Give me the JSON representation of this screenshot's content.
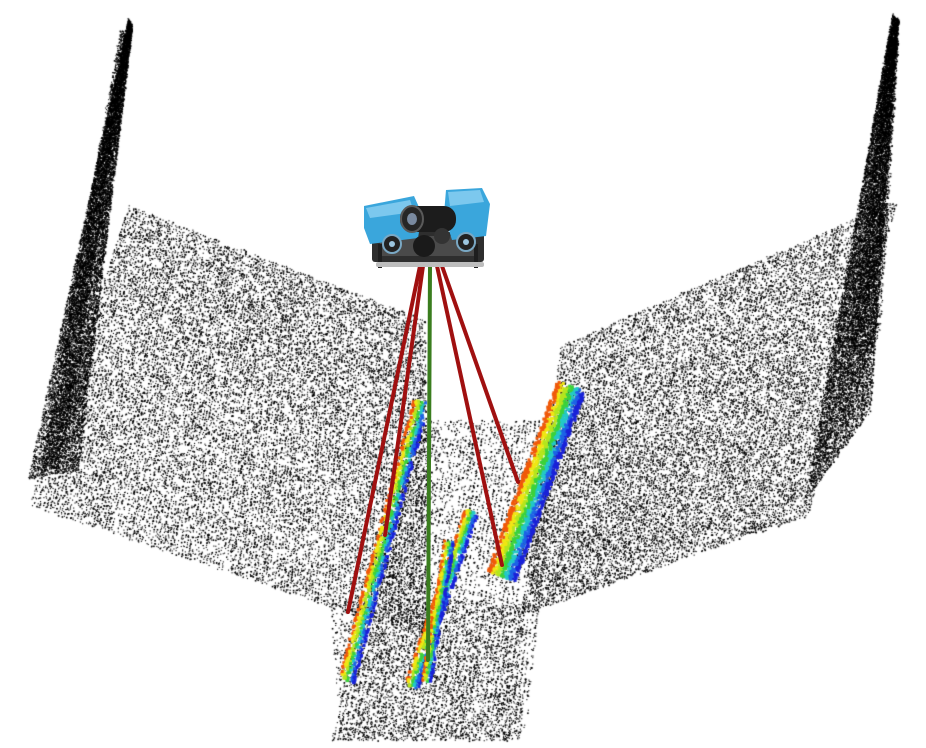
{
  "scene": {
    "background_color": "#ffffff",
    "point_cloud": {
      "name": "environment-point-cloud",
      "color": "#000000",
      "segments": [
        "left-wall",
        "left-slope",
        "channel-floor",
        "right-slope",
        "right-wall"
      ]
    },
    "colored_returns": {
      "name": "sonar-returns",
      "colormap": [
        "#1a22d8",
        "#1e64e6",
        "#24c8c8",
        "#3cd23c",
        "#b4e61e",
        "#f0e614",
        "#f05a0a"
      ]
    },
    "vehicle": {
      "name": "rov",
      "icon": "rov-icon",
      "body_color": "#3aa6dc",
      "frame_color": "#2a2a2a"
    },
    "beams": {
      "central_color": "#3a7d1e",
      "side_color": "#a01010",
      "side_beam_count": 4,
      "central_beam_count": 1
    }
  }
}
